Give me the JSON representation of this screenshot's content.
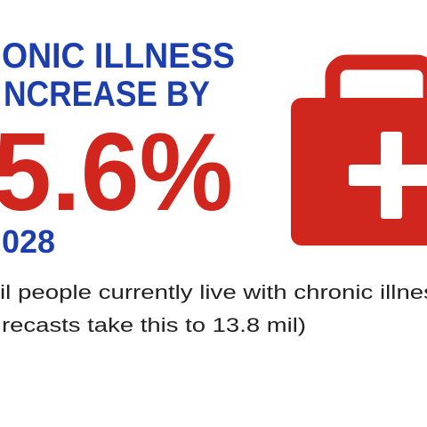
{
  "headline": {
    "line1": "ONIC ILLNESS",
    "line2": "NCREASE BY",
    "figure": "5.6%",
    "year": "028"
  },
  "body": {
    "line1": "il people currently live with chronic illnes",
    "line2": "recasts take this to 13.8 mil)"
  }
}
